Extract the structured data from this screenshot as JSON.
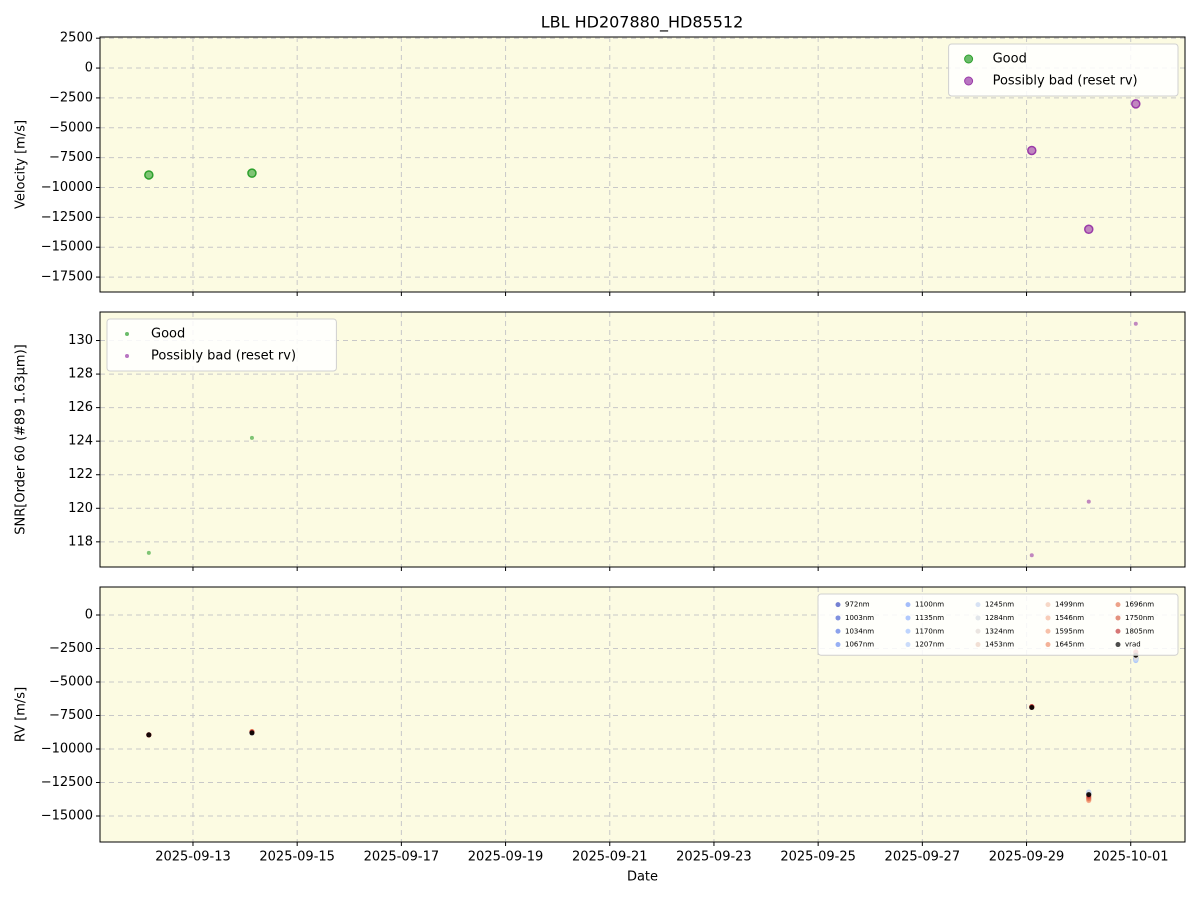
{
  "chart_data": [
    {
      "type": "scatter",
      "title": "LBL HD207880_HD85512",
      "ylabel": "Velocity [m/s]",
      "x": [
        "2025-09-12T03:40",
        "2025-09-14T03:10",
        "2025-09-29T02:25",
        "2025-09-30T04:40",
        "2025-10-01T02:20"
      ],
      "xlim": [
        "2025-09-11T05:10",
        "2025-10-02T01:00"
      ],
      "xticks": [
        "2025-09-13",
        "2025-09-15",
        "2025-09-17",
        "2025-09-19",
        "2025-09-21",
        "2025-09-23",
        "2025-09-25",
        "2025-09-27",
        "2025-09-29",
        "2025-10-01"
      ],
      "ylim": [
        -18750,
        2600
      ],
      "yticks": [
        {
          "value": -17500,
          "label": "−17500"
        },
        {
          "value": -15000,
          "label": "−15000"
        },
        {
          "value": -12500,
          "label": "−12500"
        },
        {
          "value": -10000,
          "label": "−10000"
        },
        {
          "value": -7500,
          "label": "−7500"
        },
        {
          "value": -5000,
          "label": "−5000"
        },
        {
          "value": -2500,
          "label": "−2500"
        },
        0,
        2500
      ],
      "grid": true,
      "legend": "upper right",
      "legend_ncol": 1,
      "series": [
        {
          "name": "Good",
          "color": "#2ca02c",
          "values": [
            -8950,
            -8800,
            null,
            null,
            null
          ]
        },
        {
          "name": "Possibly bad (reset rv)",
          "color": "#9a3aa8",
          "values": [
            null,
            null,
            -6900,
            -13500,
            -3000
          ]
        }
      ]
    },
    {
      "type": "scatter",
      "ylabel": "SNR[Order 60 (#89 1.63μm)]",
      "x": [
        "2025-09-12T03:40",
        "2025-09-14T03:10",
        "2025-09-29T02:25",
        "2025-09-30T04:40",
        "2025-10-01T02:20"
      ],
      "xlim": [
        "2025-09-11T05:10",
        "2025-10-02T01:00"
      ],
      "xticks": [
        "2025-09-13",
        "2025-09-15",
        "2025-09-17",
        "2025-09-19",
        "2025-09-21",
        "2025-09-23",
        "2025-09-25",
        "2025-09-27",
        "2025-09-29",
        "2025-10-01"
      ],
      "ylim": [
        116.5,
        131.7
      ],
      "yticks": [
        118,
        120,
        122,
        124,
        126,
        128,
        130
      ],
      "grid": true,
      "legend": "upper left",
      "legend_ncol": 1,
      "series": [
        {
          "name": "Good",
          "color": "#2ca02c",
          "values": [
            117.34,
            124.2,
            null,
            null,
            null
          ]
        },
        {
          "name": "Possibly bad (reset rv)",
          "color": "#9a3aa8",
          "values": [
            null,
            null,
            117.2,
            120.4,
            131.0
          ]
        }
      ]
    },
    {
      "type": "scatter",
      "ylabel": "RV [m/s]",
      "xlabel": "Date",
      "x": [
        "2025-09-12T03:40",
        "2025-09-14T03:10",
        "2025-09-29T02:25",
        "2025-09-30T04:40",
        "2025-10-01T02:20"
      ],
      "xlim": [
        "2025-09-11T05:10",
        "2025-10-02T01:00"
      ],
      "xticks": [
        "2025-09-13",
        "2025-09-15",
        "2025-09-17",
        "2025-09-19",
        "2025-09-21",
        "2025-09-23",
        "2025-09-25",
        "2025-09-27",
        "2025-09-29",
        "2025-10-01"
      ],
      "ylim": [
        -16940,
        2090
      ],
      "yticks": [
        {
          "value": -15000,
          "label": "−15000"
        },
        {
          "value": -12500,
          "label": "−12500"
        },
        {
          "value": -10000,
          "label": "−10000"
        },
        {
          "value": -7500,
          "label": "−7500"
        },
        {
          "value": -5000,
          "label": "−5000"
        },
        {
          "value": -2500,
          "label": "−2500"
        },
        0
      ],
      "grid": true,
      "legend": "upper right",
      "legend_ncol": 5,
      "series": [
        {
          "name": "972nm",
          "color": "#3b4cc0",
          "values": [
            -8950,
            -8800,
            -6850,
            -13300,
            -3200
          ]
        },
        {
          "name": "1003nm",
          "color": "#4a63d3",
          "values": [
            -8950,
            -8800,
            -6850,
            -13300,
            -3250
          ]
        },
        {
          "name": "1034nm",
          "color": "#5b7ae5",
          "values": [
            -8950,
            -8800,
            -6850,
            -13350,
            -3250
          ]
        },
        {
          "name": "1067nm",
          "color": "#6c8ff1",
          "values": [
            -8950,
            -8800,
            -6900,
            -13350,
            -3300
          ]
        },
        {
          "name": "1100nm",
          "color": "#7ea1fa",
          "values": [
            -8950,
            -8800,
            -6900,
            -13300,
            -3300
          ]
        },
        {
          "name": "1135nm",
          "color": "#90b2fe",
          "values": [
            -8950,
            -8800,
            -6900,
            -13300,
            -3350
          ]
        },
        {
          "name": "1170nm",
          "color": "#a3c2fe",
          "values": [
            -8950,
            -8800,
            -6900,
            -13250,
            -3400
          ]
        },
        {
          "name": "1207nm",
          "color": "#b5cdfa",
          "values": [
            -8950,
            -8800,
            -6900,
            -13250,
            -3350
          ]
        },
        {
          "name": "1245nm",
          "color": "#c6d6f1",
          "values": [
            -8950,
            -8800,
            -6900,
            -13200,
            -3300
          ]
        },
        {
          "name": "1284nm",
          "color": "#d6dce4",
          "values": [
            -8950,
            -8800,
            -6900,
            -13300,
            -3200
          ]
        },
        {
          "name": "1324nm",
          "color": "#e2dad5",
          "values": [
            -8950,
            -8800,
            -6900,
            -13400,
            -3100
          ]
        },
        {
          "name": "1453nm",
          "color": "#ecd3c5",
          "values": [
            -8950,
            -8750,
            -6900,
            -13600,
            -3000
          ]
        },
        {
          "name": "1499nm",
          "color": "#f3c7b1",
          "values": [
            -8950,
            -8750,
            -6900,
            -13700,
            -2950
          ]
        },
        {
          "name": "1546nm",
          "color": "#f5b79b",
          "values": [
            -8950,
            -8700,
            -6850,
            -13800,
            -2900
          ]
        },
        {
          "name": "1595nm",
          "color": "#f4a584",
          "values": [
            -8950,
            -8700,
            -6850,
            -13850,
            -2850
          ]
        },
        {
          "name": "1645nm",
          "color": "#ef916e",
          "values": [
            -8950,
            -8700,
            -6850,
            -13750,
            -2800
          ]
        },
        {
          "name": "1696nm",
          "color": "#e57a59",
          "values": [
            -8950,
            -8700,
            -6850,
            -13700,
            -2750
          ]
        },
        {
          "name": "1750nm",
          "color": "#d9644a",
          "values": [
            -8950,
            -8750,
            -6850,
            -13600,
            -2750
          ]
        },
        {
          "name": "1805nm",
          "color": "#c43c3c",
          "values": [
            -8950,
            -8750,
            -6850,
            -13500,
            -2800
          ]
        },
        {
          "name": "vrad",
          "color": "#000000",
          "values": [
            -8950,
            -8800,
            -6900,
            -13400,
            -3000
          ]
        }
      ]
    }
  ]
}
